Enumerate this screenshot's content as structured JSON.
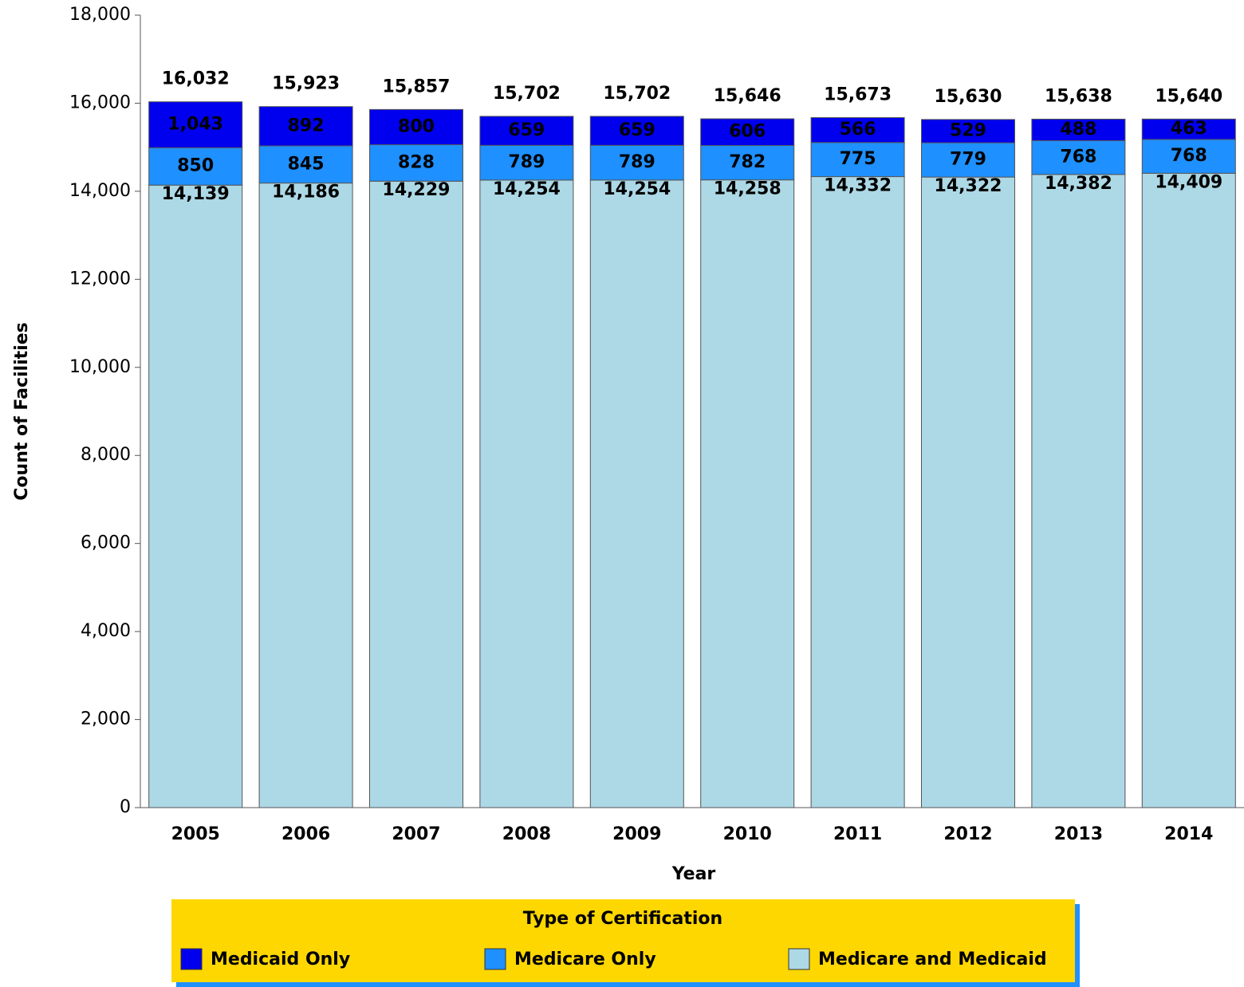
{
  "chart_data": {
    "type": "stacked_bar",
    "x_label": "Year",
    "y_label": "Count of Facilities",
    "categories": [
      "2005",
      "2006",
      "2007",
      "2008",
      "2009",
      "2010",
      "2011",
      "2012",
      "2013",
      "2014"
    ],
    "series": [
      {
        "name": "Medicaid Only",
        "color": "#0000ee",
        "label_color": "#ffd700",
        "values": [
          1043,
          892,
          800,
          659,
          659,
          606,
          566,
          529,
          488,
          463
        ],
        "value_labels": [
          "1,043",
          "892",
          "800",
          "659",
          "659",
          "606",
          "566",
          "529",
          "488",
          "463"
        ]
      },
      {
        "name": "Medicare Only",
        "color": "#1e90ff",
        "label_color": "#000000",
        "values": [
          850,
          845,
          828,
          789,
          789,
          782,
          775,
          779,
          768,
          768
        ],
        "value_labels": [
          "850",
          "845",
          "828",
          "789",
          "789",
          "782",
          "775",
          "779",
          "768",
          "768"
        ]
      },
      {
        "name": "Medicare and Medicaid",
        "color": "#add8e6",
        "label_color": "#000000",
        "values": [
          14139,
          14186,
          14229,
          14254,
          14254,
          14258,
          14332,
          14322,
          14382,
          14409
        ],
        "value_labels": [
          "14,139",
          "14,186",
          "14,229",
          "14,254",
          "14,254",
          "14,258",
          "14,332",
          "14,322",
          "14,382",
          "14,409"
        ]
      }
    ],
    "totals": {
      "values": [
        16032,
        15923,
        15857,
        15702,
        15702,
        15646,
        15673,
        15630,
        15638,
        15640
      ],
      "value_labels": [
        "16,032",
        "15,923",
        "15,857",
        "15,702",
        "15,702",
        "15,646",
        "15,673",
        "15,630",
        "15,638",
        "15,640"
      ]
    },
    "ylim": [
      0,
      18000
    ],
    "yticks": [
      0,
      {
        "value": 2000,
        "label": "2,000"
      },
      {
        "value": 4000,
        "label": "4,000"
      },
      {
        "value": 6000,
        "label": "6,000"
      },
      {
        "value": 8000,
        "label": "8,000"
      },
      {
        "value": 10000,
        "label": "10,000"
      },
      {
        "value": 12000,
        "label": "12,000"
      },
      {
        "value": 14000,
        "label": "14,000"
      },
      {
        "value": 16000,
        "label": "16,000"
      },
      {
        "value": 18000,
        "label": "18,000"
      }
    ],
    "grid": false,
    "legend": {
      "title": "Type of Certification",
      "position": "bottom",
      "background": "#ffd700"
    }
  }
}
